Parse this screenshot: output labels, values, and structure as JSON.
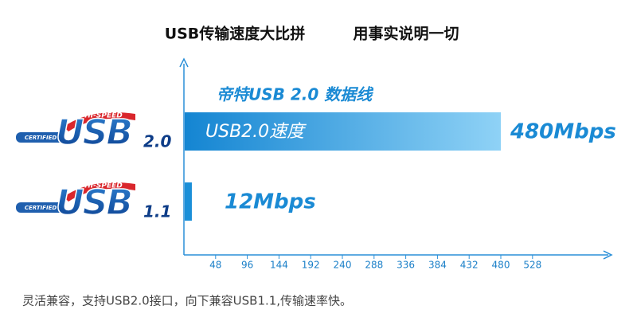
{
  "chart_data": {
    "type": "hbar",
    "title": "USB传输速度大比拼",
    "subtitle": "用事实说明一切",
    "annotation": "帝特USB 2.0 数据线",
    "bar_label": "USB2.0速度",
    "footnote": "灵活兼容，支持USB2.0接口，向下兼容USB1.1,传输速率快。",
    "logo": {
      "ribbon": "HI-SPEED",
      "badge": "CERTIFIED",
      "mark": "USB"
    },
    "categories": [
      "2.0",
      "1.1"
    ],
    "values": [
      480,
      12
    ],
    "value_labels": [
      "480Mbps",
      "12Mbps"
    ],
    "color": "#1b8fd8",
    "xlim": [
      0,
      644
    ],
    "xticks": [
      48,
      96,
      144,
      192,
      240,
      288,
      336,
      384,
      432,
      480,
      528
    ]
  }
}
